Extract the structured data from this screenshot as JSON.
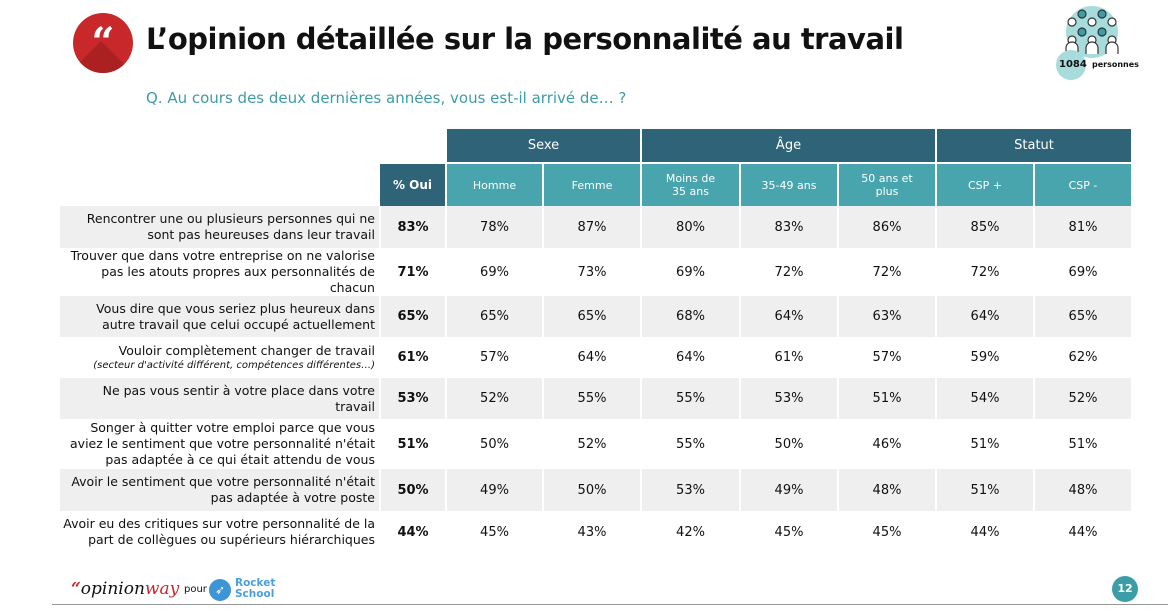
{
  "header": {
    "title": "L’opinion détaillée sur la personnalité au travail",
    "subtitle": "Q. Au cours des deux dernières années, vous est-il arrivé de… ?",
    "quote_icon": "“",
    "sample_count": "1084",
    "sample_label": "personnes"
  },
  "table": {
    "total_header": "% Oui",
    "groups": [
      "Sexe",
      "Âge",
      "Statut"
    ],
    "columns": [
      "Homme",
      "Femme",
      "Moins de 35 ans",
      "35-49 ans",
      "50 ans et plus",
      "CSP +",
      "CSP -"
    ],
    "rows": [
      {
        "label": "Rencontrer une ou plusieurs personnes qui ne sont pas heureuses dans leur travail",
        "note": "",
        "total": "83%",
        "values": [
          "78%",
          "87%",
          "80%",
          "83%",
          "86%",
          "85%",
          "81%"
        ]
      },
      {
        "label": "Trouver que dans votre entreprise on ne valorise pas les atouts propres aux personnalités de chacun",
        "note": "",
        "total": "71%",
        "values": [
          "69%",
          "73%",
          "69%",
          "72%",
          "72%",
          "72%",
          "69%"
        ]
      },
      {
        "label": "Vous dire que vous seriez plus heureux dans autre travail que celui occupé actuellement",
        "note": "",
        "total": "65%",
        "values": [
          "65%",
          "65%",
          "68%",
          "64%",
          "63%",
          "64%",
          "65%"
        ]
      },
      {
        "label": "Vouloir complètement changer de travail",
        "note": "(secteur d'activité différent, compétences différentes…)",
        "total": "61%",
        "values": [
          "57%",
          "64%",
          "64%",
          "61%",
          "57%",
          "59%",
          "62%"
        ]
      },
      {
        "label": "Ne pas vous sentir à votre place dans votre travail",
        "note": "",
        "total": "53%",
        "values": [
          "52%",
          "55%",
          "55%",
          "53%",
          "51%",
          "54%",
          "52%"
        ]
      },
      {
        "label": "Songer à quitter votre emploi parce que vous aviez le sentiment que votre personnalité n'était pas adaptée à ce qui était attendu de vous",
        "note": "",
        "total": "51%",
        "values": [
          "50%",
          "52%",
          "55%",
          "50%",
          "46%",
          "51%",
          "51%"
        ]
      },
      {
        "label": "Avoir le sentiment que votre personnalité n'était pas adaptée à votre poste",
        "note": "",
        "total": "50%",
        "values": [
          "49%",
          "50%",
          "53%",
          "49%",
          "48%",
          "51%",
          "48%"
        ]
      },
      {
        "label": "Avoir eu des critiques sur votre personnalité de la part de collègues ou supérieurs hiérarchiques",
        "note": "",
        "total": "44%",
        "values": [
          "45%",
          "43%",
          "42%",
          "45%",
          "45%",
          "44%",
          "44%"
        ]
      }
    ]
  },
  "footer": {
    "brand_quote": "“",
    "brand_opinion": "opinion",
    "brand_way": "way",
    "pour": "pour",
    "partner_line1": "Rocket",
    "partner_line2": "School",
    "page": "12"
  },
  "colors": {
    "dark_header": "#2e6378",
    "light_header": "#48a5ad",
    "accent_red": "#c8282a",
    "row_gray": "#efefef"
  }
}
